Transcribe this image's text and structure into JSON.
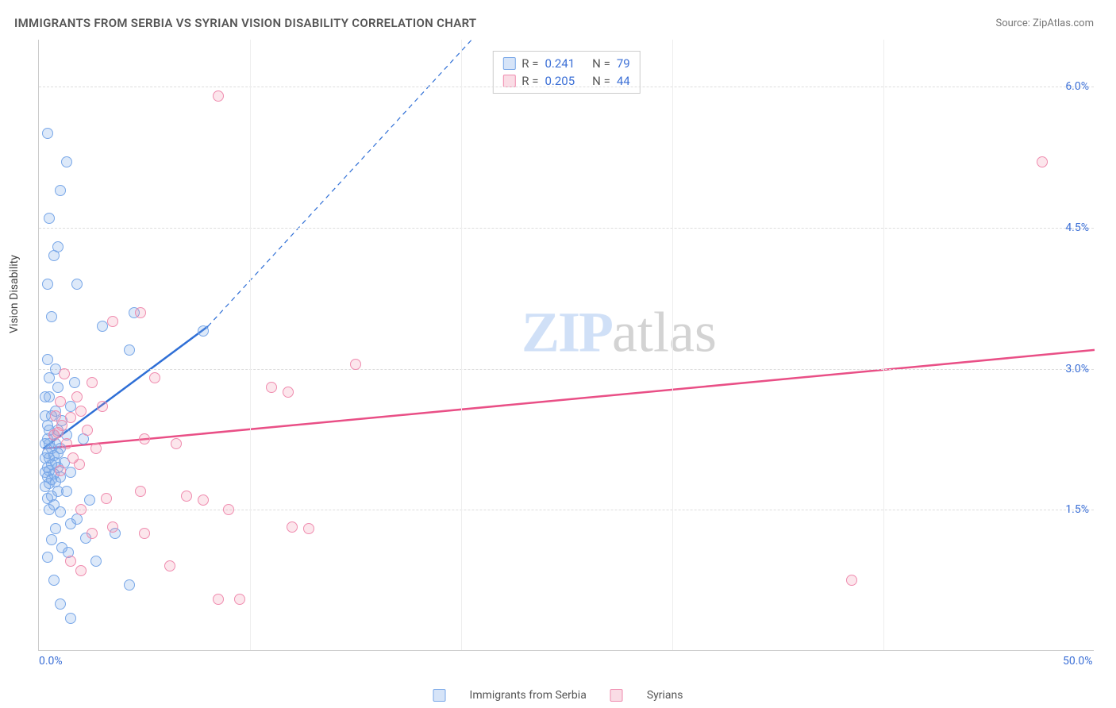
{
  "title": "IMMIGRANTS FROM SERBIA VS SYRIAN VISION DISABILITY CORRELATION CHART",
  "source": "Source: ZipAtlas.com",
  "ylabel": "Vision Disability",
  "watermark": {
    "zip": "ZIP",
    "atlas": "atlas"
  },
  "chart": {
    "type": "scatter",
    "background_color": "#ffffff",
    "grid_color": "#dddddd",
    "xlim": [
      0,
      50
    ],
    "ylim": [
      0,
      6.5
    ],
    "xticks": [
      0,
      10,
      20,
      30,
      40,
      50
    ],
    "xtick_labels": {
      "0": "0.0%",
      "50": "50.0%"
    },
    "yticks": [
      1.5,
      3.0,
      4.5,
      6.0
    ],
    "ytick_labels": [
      "1.5%",
      "3.0%",
      "4.5%",
      "6.0%"
    ],
    "marker_radius": 7,
    "series": {
      "a": {
        "name": "Immigrants from Serbia",
        "color": "#78a7e8",
        "line_color": "#2f6fd6",
        "R": "0.241",
        "N": "79",
        "trend": {
          "x1": 0.2,
          "y1": 2.15,
          "x2": 8.0,
          "y2": 3.45
        },
        "trend_dashed_to": {
          "x": 20.5,
          "y": 6.5
        },
        "points": [
          [
            0.4,
            5.5
          ],
          [
            1.3,
            5.2
          ],
          [
            1.0,
            4.9
          ],
          [
            0.5,
            4.6
          ],
          [
            0.9,
            4.3
          ],
          [
            0.7,
            4.2
          ],
          [
            1.8,
            3.9
          ],
          [
            0.4,
            3.9
          ],
          [
            4.5,
            3.6
          ],
          [
            0.6,
            3.55
          ],
          [
            3.0,
            3.45
          ],
          [
            7.8,
            3.4
          ],
          [
            4.3,
            3.2
          ],
          [
            0.4,
            3.1
          ],
          [
            0.8,
            3.0
          ],
          [
            0.5,
            2.9
          ],
          [
            1.7,
            2.85
          ],
          [
            0.9,
            2.8
          ],
          [
            0.5,
            2.7
          ],
          [
            0.3,
            2.7
          ],
          [
            1.5,
            2.6
          ],
          [
            0.8,
            2.55
          ],
          [
            0.6,
            2.5
          ],
          [
            0.3,
            2.5
          ],
          [
            1.1,
            2.45
          ],
          [
            0.4,
            2.4
          ],
          [
            0.9,
            2.35
          ],
          [
            0.5,
            2.35
          ],
          [
            1.3,
            2.3
          ],
          [
            0.7,
            2.3
          ],
          [
            2.1,
            2.25
          ],
          [
            0.4,
            2.25
          ],
          [
            0.8,
            2.2
          ],
          [
            0.5,
            2.2
          ],
          [
            0.3,
            2.2
          ],
          [
            1.0,
            2.15
          ],
          [
            0.6,
            2.15
          ],
          [
            0.9,
            2.1
          ],
          [
            0.4,
            2.1
          ],
          [
            0.7,
            2.08
          ],
          [
            0.5,
            2.05
          ],
          [
            0.3,
            2.05
          ],
          [
            1.2,
            2.0
          ],
          [
            0.8,
            2.0
          ],
          [
            0.6,
            1.98
          ],
          [
            0.4,
            1.95
          ],
          [
            0.9,
            1.95
          ],
          [
            0.5,
            1.92
          ],
          [
            1.5,
            1.9
          ],
          [
            0.3,
            1.9
          ],
          [
            0.7,
            1.88
          ],
          [
            1.0,
            1.85
          ],
          [
            0.4,
            1.85
          ],
          [
            0.6,
            1.82
          ],
          [
            0.8,
            1.8
          ],
          [
            0.5,
            1.78
          ],
          [
            0.3,
            1.75
          ],
          [
            1.3,
            1.7
          ],
          [
            0.9,
            1.7
          ],
          [
            0.6,
            1.65
          ],
          [
            0.4,
            1.62
          ],
          [
            2.4,
            1.6
          ],
          [
            0.7,
            1.55
          ],
          [
            0.5,
            1.5
          ],
          [
            1.0,
            1.48
          ],
          [
            1.8,
            1.4
          ],
          [
            1.5,
            1.35
          ],
          [
            0.8,
            1.3
          ],
          [
            3.6,
            1.25
          ],
          [
            2.2,
            1.2
          ],
          [
            0.6,
            1.18
          ],
          [
            1.1,
            1.1
          ],
          [
            1.4,
            1.05
          ],
          [
            0.4,
            1.0
          ],
          [
            2.7,
            0.95
          ],
          [
            0.7,
            0.75
          ],
          [
            4.3,
            0.7
          ],
          [
            1.0,
            0.5
          ],
          [
            1.5,
            0.35
          ]
        ]
      },
      "b": {
        "name": "Syrians",
        "color": "#ef8caf",
        "line_color": "#e94f86",
        "R": "0.205",
        "N": "44",
        "trend": {
          "x1": 0.2,
          "y1": 2.15,
          "x2": 50.0,
          "y2": 3.2
        },
        "points": [
          [
            8.5,
            5.9
          ],
          [
            47.5,
            5.2
          ],
          [
            4.8,
            3.6
          ],
          [
            3.5,
            3.5
          ],
          [
            15.0,
            3.05
          ],
          [
            1.2,
            2.95
          ],
          [
            5.5,
            2.9
          ],
          [
            2.5,
            2.85
          ],
          [
            11.0,
            2.8
          ],
          [
            11.8,
            2.75
          ],
          [
            1.8,
            2.7
          ],
          [
            1.0,
            2.65
          ],
          [
            3.0,
            2.6
          ],
          [
            2.0,
            2.55
          ],
          [
            0.8,
            2.5
          ],
          [
            1.5,
            2.48
          ],
          [
            1.1,
            2.4
          ],
          [
            2.3,
            2.35
          ],
          [
            0.9,
            2.32
          ],
          [
            5.0,
            2.25
          ],
          [
            1.3,
            2.2
          ],
          [
            6.5,
            2.2
          ],
          [
            2.7,
            2.15
          ],
          [
            1.6,
            2.05
          ],
          [
            0.7,
            2.3
          ],
          [
            1.9,
            1.98
          ],
          [
            1.0,
            1.92
          ],
          [
            4.8,
            1.7
          ],
          [
            7.0,
            1.65
          ],
          [
            3.2,
            1.62
          ],
          [
            7.8,
            1.6
          ],
          [
            2.0,
            1.5
          ],
          [
            9.0,
            1.5
          ],
          [
            3.5,
            1.32
          ],
          [
            12.0,
            1.32
          ],
          [
            12.8,
            1.3
          ],
          [
            2.5,
            1.25
          ],
          [
            5.0,
            1.25
          ],
          [
            1.5,
            0.95
          ],
          [
            6.2,
            0.9
          ],
          [
            38.5,
            0.75
          ],
          [
            8.5,
            0.55
          ],
          [
            2.0,
            0.85
          ],
          [
            9.5,
            0.55
          ]
        ]
      }
    }
  },
  "legend_top": {
    "r_label": "R  =",
    "n_label": "N  ="
  },
  "legend_bottom": {
    "a": "Immigrants from Serbia",
    "b": "Syrians"
  }
}
